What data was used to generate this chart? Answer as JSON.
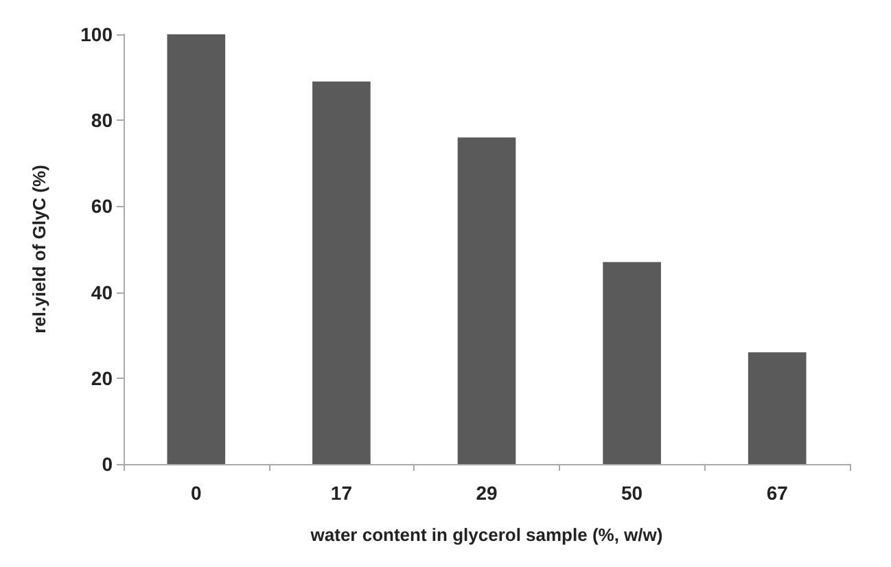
{
  "chart_data": {
    "type": "bar",
    "xlabel": "water content in glycerol sample (%, w/w)",
    "ylabel": "rel.yield of GlyC (%)",
    "categories": [
      "0",
      "17",
      "29",
      "50",
      "67"
    ],
    "values": [
      100,
      89,
      76,
      47,
      26
    ],
    "color": "#5a5a5a",
    "ylim": [
      0,
      100
    ],
    "yticks": [
      0,
      20,
      40,
      60,
      80,
      100
    ],
    "grid": false
  }
}
